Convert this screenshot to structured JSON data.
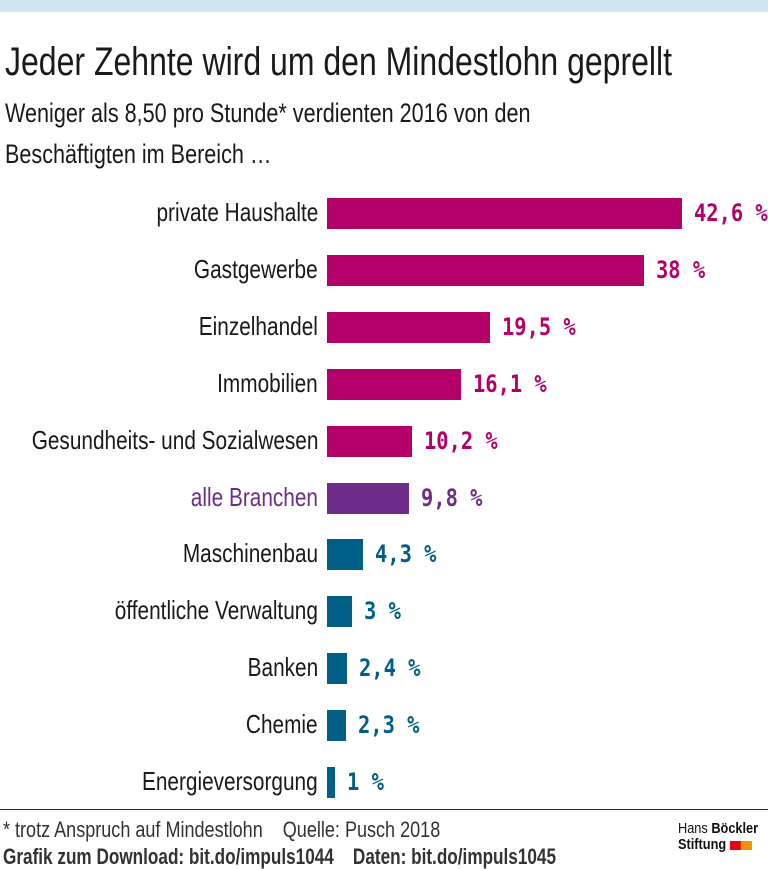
{
  "chart_data": {
    "type": "bar",
    "orientation": "horizontal",
    "title": "Jeder Zehnte wird um den Mindestlohn geprellt",
    "subtitle": "Weniger als 8,50 pro Stunde* verdienten 2016 von den Beschäftigten im Bereich …",
    "categories": [
      "private Haushalte",
      "Gastgewerbe",
      "Einzelhandel",
      "Immobilien",
      "Gesundheits- und Sozialwesen",
      "alle Branchen",
      "Maschinenbau",
      "öffentliche Verwaltung",
      "Banken",
      "Chemie",
      "Energieversorgung"
    ],
    "values": [
      42.6,
      38,
      19.5,
      16.1,
      10.2,
      9.8,
      4.3,
      3,
      2.4,
      2.3,
      1
    ],
    "value_labels": [
      "42,6 %",
      "38 %",
      "19,5 %",
      "16,1 %",
      "10,2 %",
      "9,8 %",
      "4,3 %",
      "3 %",
      "2,4 %",
      "2,3 %",
      "1 %"
    ],
    "groups": [
      "above",
      "above",
      "above",
      "above",
      "above",
      "average",
      "below",
      "below",
      "below",
      "below",
      "below"
    ],
    "colors": {
      "above": "#b5006a",
      "average": "#6e2c8b",
      "below": "#005f86",
      "label_average": "#6e2c8b",
      "label_default": "#1a1a1a"
    },
    "xlim": [
      0,
      42.6
    ],
    "grid": false
  },
  "footer": {
    "note": "* trotz Anspruch auf Mindestlohn",
    "source": "Quelle: Pusch 2018",
    "download": "Grafik zum Download: bit.do/impuls1044",
    "data": "Daten: bit.do/impuls1045"
  },
  "logo": {
    "line1_a": "Hans",
    "line1_b": "Böckler",
    "line2": "Stiftung"
  }
}
